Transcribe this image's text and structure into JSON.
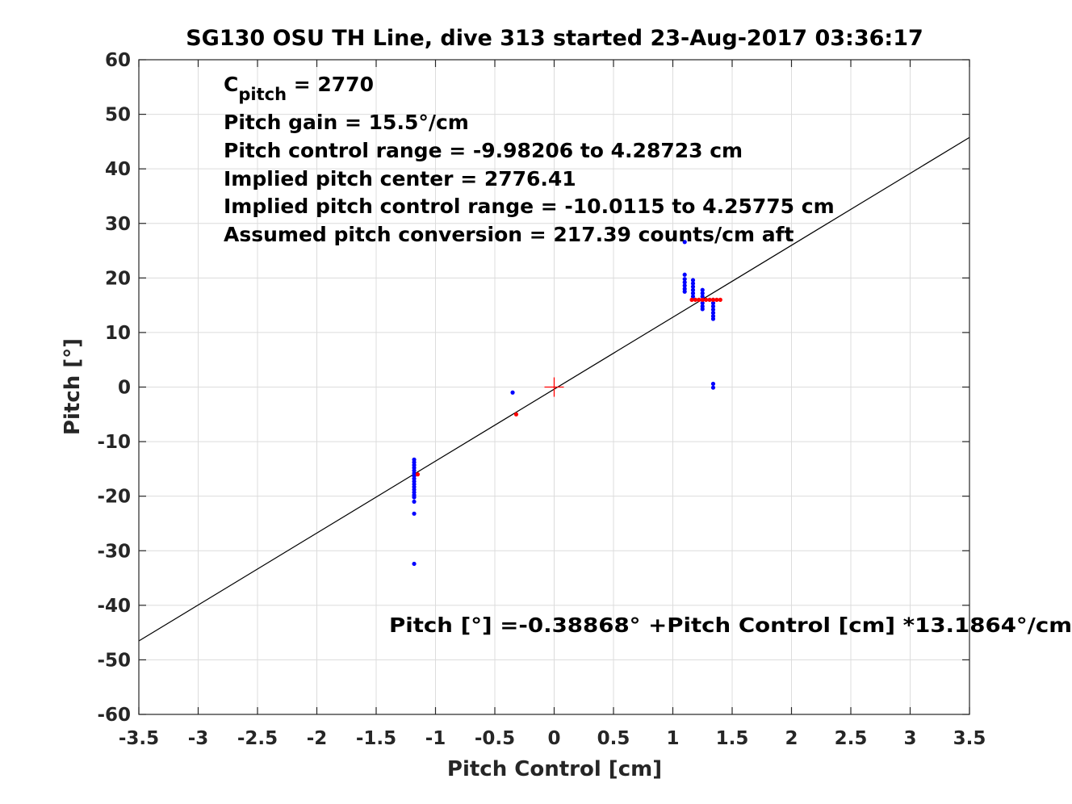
{
  "chart_data": {
    "type": "scatter",
    "title": "SG130 OSU TH Line, dive 313 started 23-Aug-2017 03:36:17",
    "xlabel": "Pitch Control [cm]",
    "ylabel": "Pitch [°]",
    "xlim": [
      -3.5,
      3.5
    ],
    "ylim": [
      -60,
      60
    ],
    "xticks": [
      -3.5,
      -3,
      -2.5,
      -2,
      -1.5,
      -1,
      -0.5,
      0,
      0.5,
      1,
      1.5,
      2,
      2.5,
      3,
      3.5
    ],
    "xtick_labels": [
      "-3.5",
      "-3",
      "-2.5",
      "-2",
      "-1.5",
      "-1",
      "-0.5",
      "0",
      "0.5",
      "1",
      "1.5",
      "2",
      "2.5",
      "3",
      "3.5"
    ],
    "yticks": [
      -60,
      -50,
      -40,
      -30,
      -20,
      -10,
      0,
      10,
      20,
      30,
      40,
      50,
      60
    ],
    "ytick_labels": [
      "-60",
      "-50",
      "-40",
      "-30",
      "-20",
      "-10",
      "0",
      "10",
      "20",
      "30",
      "40",
      "50",
      "60"
    ],
    "grid": true,
    "annotations": {
      "c_pitch": {
        "prefix": "C",
        "subscript": "pitch",
        "suffix": " = 2770"
      },
      "lines": [
        "Pitch gain = 15.5°/cm",
        "Pitch control range = -9.98206 to 4.28723 cm",
        "Implied pitch center = 2776.41",
        "Implied pitch control range = -10.0115 to 4.25775 cm",
        "Assumed pitch conversion = 217.39 counts/cm aft"
      ],
      "fit_equation": "Pitch [°] =-0.38868° +Pitch Control [cm] *13.1864°/cm"
    },
    "fit_line": {
      "intercept": -0.38868,
      "slope": 13.1864,
      "color": "#000000"
    },
    "center_marker": {
      "x": 0,
      "y": 0,
      "color": "#ff0000"
    },
    "series": [
      {
        "color": "#0000ff",
        "points": [
          [
            -1.18,
            -13.3
          ],
          [
            -1.18,
            -13.8
          ],
          [
            -1.18,
            -14.3
          ],
          [
            -1.18,
            -14.8
          ],
          [
            -1.18,
            -15.3
          ],
          [
            -1.18,
            -15.8
          ],
          [
            -1.18,
            -16.3
          ],
          [
            -1.18,
            -16.8
          ],
          [
            -1.18,
            -17.3
          ],
          [
            -1.18,
            -17.8
          ],
          [
            -1.18,
            -18.3
          ],
          [
            -1.18,
            -18.8
          ],
          [
            -1.18,
            -19.3
          ],
          [
            -1.18,
            -19.8
          ],
          [
            -1.18,
            -20.2
          ],
          [
            -1.18,
            -21.0
          ],
          [
            -1.18,
            -23.2
          ],
          [
            -1.18,
            -32.4
          ],
          [
            -0.35,
            -1.0
          ],
          [
            1.1,
            26.6
          ],
          [
            1.1,
            20.6
          ],
          [
            1.1,
            19.8
          ],
          [
            1.1,
            19.2
          ],
          [
            1.1,
            18.6
          ],
          [
            1.1,
            18.0
          ],
          [
            1.1,
            17.5
          ],
          [
            1.17,
            19.6
          ],
          [
            1.17,
            19.0
          ],
          [
            1.17,
            18.4
          ],
          [
            1.17,
            17.8
          ],
          [
            1.17,
            17.2
          ],
          [
            1.17,
            16.6
          ],
          [
            1.25,
            17.8
          ],
          [
            1.25,
            17.2
          ],
          [
            1.25,
            16.6
          ],
          [
            1.25,
            16.0
          ],
          [
            1.25,
            15.4
          ],
          [
            1.25,
            14.8
          ],
          [
            1.25,
            14.3
          ],
          [
            1.34,
            16.0
          ],
          [
            1.34,
            15.4
          ],
          [
            1.34,
            14.8
          ],
          [
            1.34,
            14.2
          ],
          [
            1.34,
            13.6
          ],
          [
            1.34,
            13.0
          ],
          [
            1.34,
            12.5
          ],
          [
            1.34,
            0.6
          ],
          [
            1.34,
            -0.1
          ]
        ]
      },
      {
        "color": "#ff0000",
        "points": [
          [
            -1.15,
            -16.0
          ],
          [
            -0.32,
            -5.0
          ],
          [
            1.16,
            16.0
          ],
          [
            1.19,
            16.0
          ],
          [
            1.22,
            16.0
          ],
          [
            1.25,
            16.0
          ],
          [
            1.28,
            16.0
          ],
          [
            1.31,
            16.0
          ],
          [
            1.34,
            16.0
          ],
          [
            1.37,
            16.0
          ],
          [
            1.4,
            16.0
          ]
        ]
      }
    ]
  }
}
